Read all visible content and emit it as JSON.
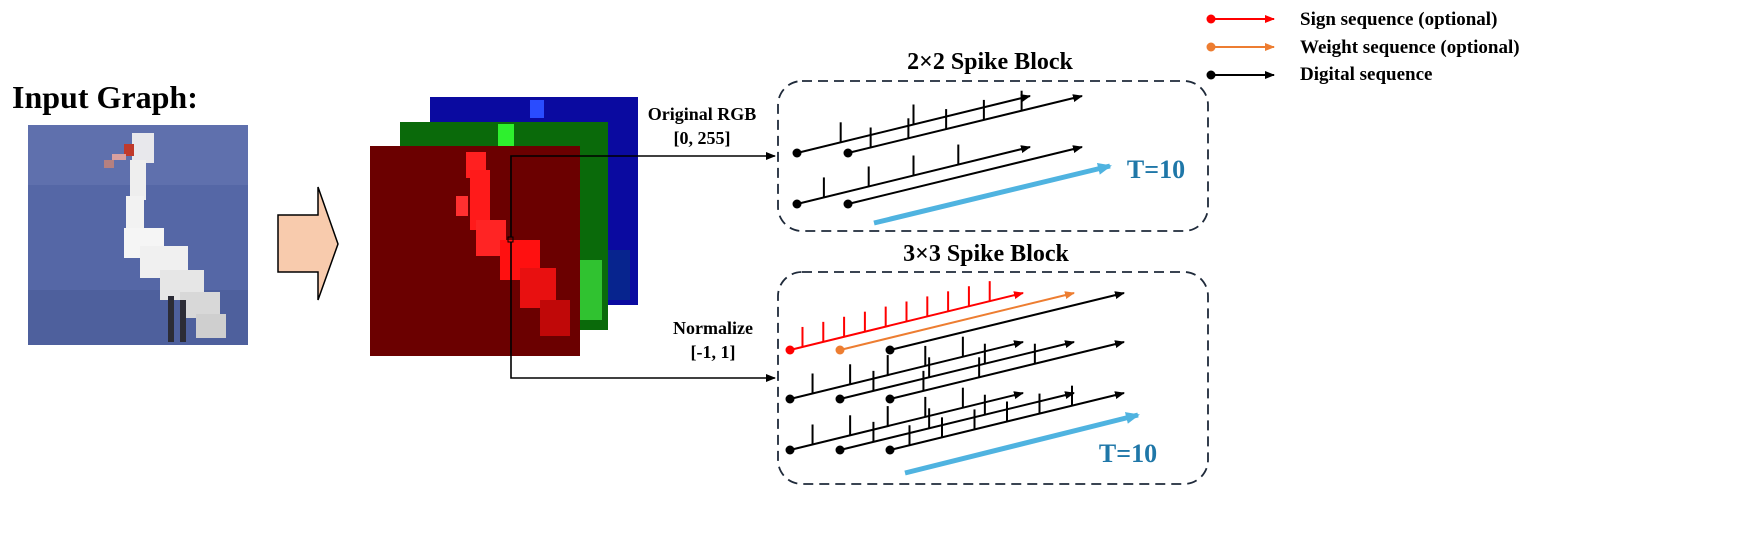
{
  "input": {
    "title": "Input Graph:"
  },
  "labels": {
    "rgb_line1": "Original RGB",
    "rgb_line2": "[0, 255]",
    "norm_line1": "Normalize",
    "norm_line2": "[-1, 1]"
  },
  "blocks": {
    "block2": {
      "title": "2×2 Spike Block",
      "time_label": "T=10"
    },
    "block3": {
      "title": "3×3 Spike Block",
      "time_label": "T=10"
    }
  },
  "legend": [
    {
      "label": "Sign sequence (optional)",
      "color": "#ff0000"
    },
    {
      "label": "Weight sequence (optional)",
      "color": "#ed7d31"
    },
    {
      "label": "Digital sequence",
      "color": "#000000"
    }
  ],
  "colors": {
    "time_arrow": "#4fb3e0",
    "time_text": "#1f77a8",
    "big_arrow_fill": "#f8cbad",
    "image_bg": "#5567a6",
    "red_channel_bg": "#6b0000",
    "green_channel_bg": "#0a6a0a",
    "blue_channel_bg": "#0a0aa0"
  }
}
